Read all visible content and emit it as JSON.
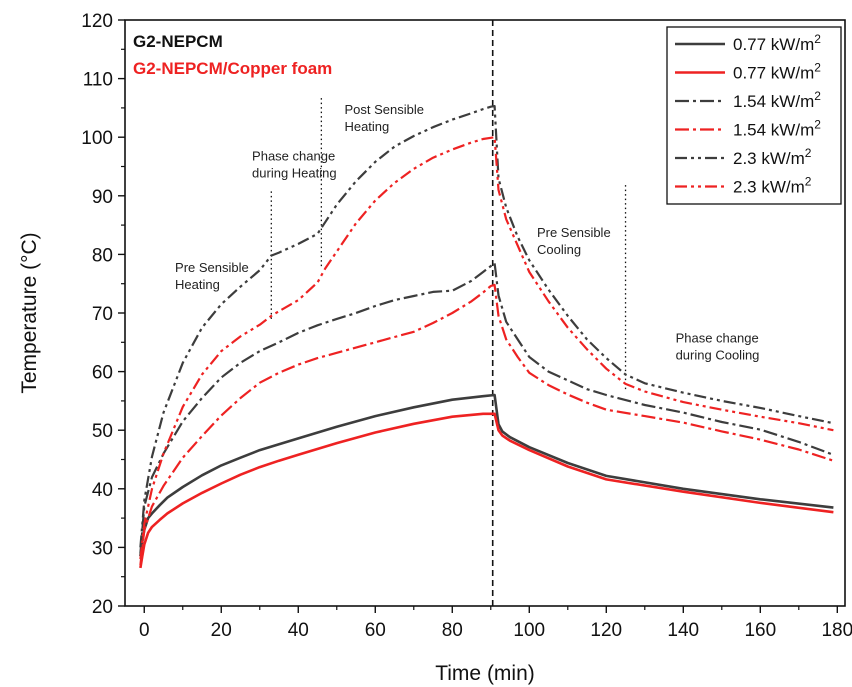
{
  "chart_data": {
    "type": "line",
    "title": "",
    "xlabel": "Time (min)",
    "ylabel": "Temperature (°C)",
    "xlim": [
      -5,
      182
    ],
    "ylim": [
      20,
      120
    ],
    "xticks": [
      0,
      20,
      40,
      60,
      80,
      100,
      120,
      140,
      160,
      180
    ],
    "yticks": [
      20,
      30,
      40,
      50,
      60,
      70,
      80,
      90,
      100,
      110,
      120
    ],
    "grid": false,
    "legend_position": "top-right",
    "legend_unit": "kW/m",
    "legend_superscript": "2",
    "group_labels": [
      {
        "text": "G2-NEPCM",
        "color": "#111111"
      },
      {
        "text": "G2-NEPCM/Copper foam",
        "color": "#ee2222"
      }
    ],
    "annotations": [
      {
        "lines": [
          "Pre Sensible",
          "Heating"
        ],
        "x": 8,
        "y": 77
      },
      {
        "lines": [
          "Phase change",
          "during Heating"
        ],
        "x": 28,
        "y": 96
      },
      {
        "lines": [
          "Post Sensible",
          "Heating"
        ],
        "x": 52,
        "y": 104
      },
      {
        "lines": [
          "Pre Sensible",
          "Cooling"
        ],
        "x": 102,
        "y": 83
      },
      {
        "lines": [
          "Phase change",
          "during Cooling"
        ],
        "x": 138,
        "y": 65
      }
    ],
    "vlines": [
      {
        "x": 33,
        "y0": 69,
        "y1": 91,
        "style": "dotted"
      },
      {
        "x": 46,
        "y0": 78,
        "y1": 107,
        "style": "dotted"
      },
      {
        "x": 90.5,
        "y0": 20,
        "y1": 120,
        "style": "dashed"
      },
      {
        "x": 125,
        "y0": 57,
        "y1": 92,
        "style": "dotted"
      }
    ],
    "series": [
      {
        "name": "0.77",
        "color": "#3d3d3d",
        "dash": "solid",
        "x": [
          -1,
          -0.5,
          0,
          1,
          2,
          4,
          6,
          10,
          15,
          20,
          25,
          30,
          35,
          40,
          50,
          60,
          70,
          80,
          88,
          91,
          92,
          93,
          95,
          100,
          110,
          120,
          140,
          160,
          179
        ],
        "y": [
          28.5,
          31,
          33,
          35,
          35.8,
          37.2,
          38.5,
          40.3,
          42.3,
          44,
          45.3,
          46.6,
          47.6,
          48.6,
          50.6,
          52.4,
          53.9,
          55.2,
          55.8,
          56,
          51,
          49.8,
          48.8,
          47.1,
          44.4,
          42.2,
          40,
          38.2,
          36.8
        ]
      },
      {
        "name": "0.77",
        "color": "#ee2222",
        "dash": "solid",
        "x": [
          -1,
          -0.5,
          0,
          1,
          2,
          4,
          6,
          10,
          15,
          20,
          25,
          30,
          35,
          40,
          50,
          60,
          70,
          80,
          88,
          91,
          92,
          93,
          95,
          100,
          110,
          120,
          140,
          160,
          179
        ],
        "y": [
          26.5,
          28.5,
          30.5,
          32.5,
          33.5,
          34.7,
          35.8,
          37.5,
          39.3,
          40.9,
          42.4,
          43.7,
          44.8,
          45.8,
          47.8,
          49.6,
          51.1,
          52.3,
          52.8,
          52.8,
          50,
          49.1,
          48.2,
          46.6,
          43.8,
          41.6,
          39.5,
          37.6,
          36
        ]
      },
      {
        "name": "1.54",
        "color": "#3d3d3d",
        "dash": "dashdot",
        "x": [
          -1,
          0,
          2,
          5,
          10,
          15,
          20,
          25,
          30,
          35,
          40,
          45,
          50,
          55,
          60,
          65,
          70,
          75,
          80,
          85,
          88,
          90,
          91,
          92,
          94,
          97,
          100,
          105,
          110,
          115,
          120,
          130,
          140,
          150,
          160,
          170,
          179
        ],
        "y": [
          29,
          37,
          42,
          46,
          51.5,
          55.5,
          59,
          61.5,
          63.5,
          65,
          66.6,
          67.9,
          69,
          70,
          71.2,
          72.2,
          72.9,
          73.6,
          73.8,
          75.5,
          77,
          78,
          78.5,
          73,
          68.5,
          65.5,
          62.5,
          60,
          58.5,
          57,
          56,
          54.3,
          53,
          51.4,
          50.1,
          48,
          45.8
        ]
      },
      {
        "name": "1.54",
        "color": "#ee2222",
        "dash": "dashdot",
        "x": [
          -1,
          0,
          2,
          5,
          10,
          15,
          20,
          25,
          30,
          35,
          40,
          45,
          50,
          55,
          60,
          65,
          70,
          75,
          80,
          85,
          88,
          90,
          91,
          92,
          94,
          97,
          100,
          105,
          110,
          115,
          120,
          130,
          140,
          150,
          160,
          170,
          179
        ],
        "y": [
          27,
          33,
          37,
          40.5,
          45.3,
          49,
          52.5,
          55.5,
          58.1,
          59.8,
          61.2,
          62.3,
          63.2,
          64.1,
          65,
          65.9,
          66.8,
          68.3,
          70,
          72,
          73.5,
          74.6,
          74.8,
          69.5,
          65.5,
          62.5,
          59.8,
          57.7,
          56.1,
          54.7,
          53.5,
          52.4,
          51.3,
          49.8,
          48.4,
          46.7,
          44.8
        ]
      },
      {
        "name": "2.3",
        "color": "#3d3d3d",
        "dash": "dashdotdot",
        "x": [
          -1,
          0,
          2,
          5,
          10,
          15,
          20,
          25,
          30,
          33,
          35,
          40,
          45,
          47,
          50,
          55,
          60,
          65,
          70,
          75,
          80,
          85,
          88,
          90,
          91,
          92,
          94,
          97,
          100,
          105,
          110,
          115,
          120,
          125,
          130,
          140,
          150,
          160,
          170,
          179
        ],
        "y": [
          30,
          38,
          45.5,
          53,
          61.5,
          67.5,
          71.5,
          74.5,
          77.3,
          79.8,
          80.3,
          81.8,
          83.5,
          85.5,
          88.5,
          92.5,
          95.8,
          98.4,
          100.2,
          101.7,
          103,
          104.1,
          104.8,
          105.2,
          105.3,
          93,
          88,
          83,
          79,
          74,
          69.5,
          65.5,
          62.3,
          59.5,
          58,
          56.4,
          55,
          53.8,
          52.4,
          51.2
        ]
      },
      {
        "name": "2.3",
        "color": "#ee2222",
        "dash": "dashdotdot",
        "x": [
          -1,
          0,
          2,
          5,
          10,
          15,
          20,
          25,
          30,
          33,
          35,
          40,
          45,
          47,
          50,
          55,
          60,
          65,
          70,
          75,
          80,
          85,
          88,
          90,
          91,
          92,
          94,
          97,
          100,
          105,
          110,
          115,
          120,
          125,
          130,
          140,
          150,
          160,
          170,
          179
        ],
        "y": [
          28,
          34,
          40,
          46,
          54,
          59.5,
          63.5,
          66,
          68,
          69.5,
          70.3,
          72.2,
          75.2,
          77.6,
          80.5,
          85.3,
          89.2,
          92.2,
          94.6,
          96.5,
          97.9,
          99.1,
          99.7,
          99.9,
          100,
          91,
          86,
          81.5,
          77,
          72,
          67.5,
          63.8,
          60.5,
          57.9,
          56.6,
          54.8,
          53.5,
          52.3,
          51.2,
          50
        ]
      }
    ]
  }
}
